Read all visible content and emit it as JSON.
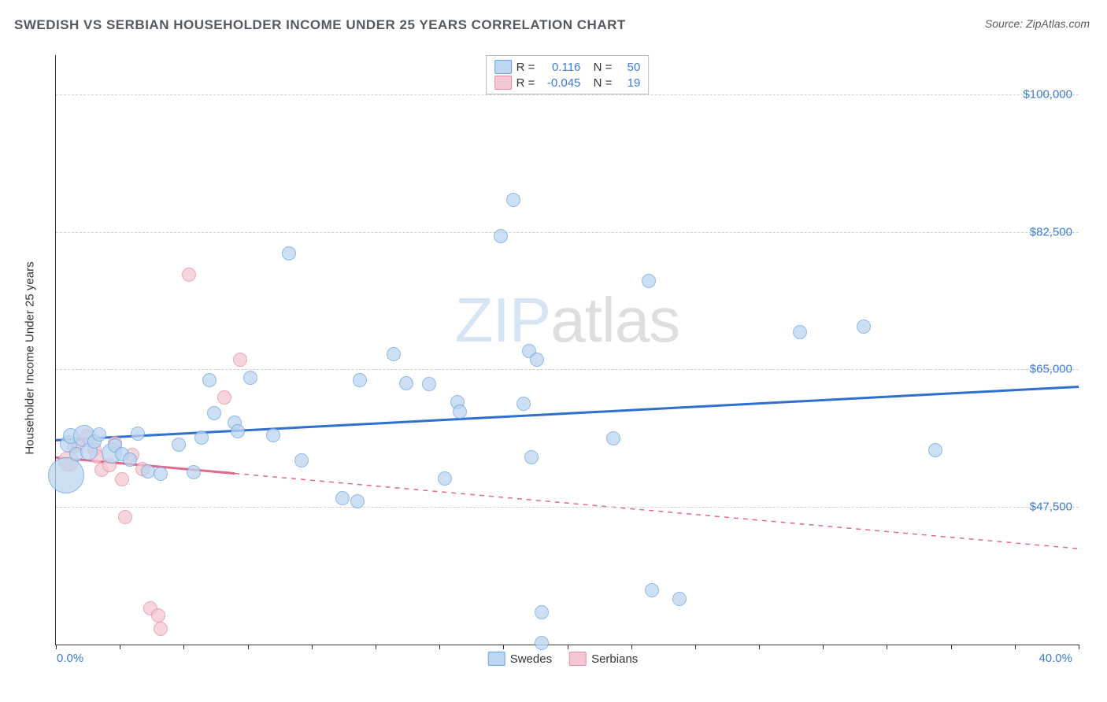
{
  "title": "SWEDISH VS SERBIAN HOUSEHOLDER INCOME UNDER 25 YEARS CORRELATION CHART",
  "source_label": "Source:",
  "source_name": "ZipAtlas.com",
  "watermark_a": "ZIP",
  "watermark_b": "atlas",
  "ylabel": "Householder Income Under 25 years",
  "chart": {
    "type": "scatter",
    "xlim": [
      0,
      40
    ],
    "ylim": [
      30000,
      105000
    ],
    "x_axis_left_label": "0.0%",
    "x_axis_right_label": "40.0%",
    "x_minor_ticks": [
      0,
      2.5,
      5,
      7.5,
      10,
      12.5,
      15,
      17.5,
      20,
      22.5,
      25,
      27.5,
      30,
      32.5,
      35,
      37.5,
      40
    ],
    "y_gridlines": [
      47500,
      65000,
      82500,
      100000
    ],
    "y_tick_labels": [
      "$47,500",
      "$65,000",
      "$82,500",
      "$100,000"
    ],
    "grid_color": "#d0d0d0",
    "background_color": "#ffffff",
    "axis_color": "#333333",
    "tick_label_color": "#3a7bd5"
  },
  "series": {
    "swedes": {
      "label": "Swedes",
      "fill": "#bcd5f0",
      "stroke": "#6aa3e0",
      "trend_color": "#2f6fd0",
      "trend_width": 3,
      "trend_y1": 56000,
      "trend_y2": 62800,
      "R": "0.116",
      "N": "50",
      "points": [
        {
          "x": 0.4,
          "y": 51500,
          "r": 22
        },
        {
          "x": 0.5,
          "y": 55500,
          "r": 10
        },
        {
          "x": 0.6,
          "y": 56500,
          "r": 9
        },
        {
          "x": 0.8,
          "y": 54200,
          "r": 8
        },
        {
          "x": 1.1,
          "y": 56500,
          "r": 13
        },
        {
          "x": 1.3,
          "y": 54500,
          "r": 10
        },
        {
          "x": 1.5,
          "y": 55800,
          "r": 8
        },
        {
          "x": 1.7,
          "y": 56700,
          "r": 8
        },
        {
          "x": 2.2,
          "y": 54300,
          "r": 12
        },
        {
          "x": 2.3,
          "y": 55300,
          "r": 8
        },
        {
          "x": 2.6,
          "y": 54200,
          "r": 8
        },
        {
          "x": 2.9,
          "y": 53500,
          "r": 8
        },
        {
          "x": 3.2,
          "y": 56800,
          "r": 8
        },
        {
          "x": 3.6,
          "y": 52000,
          "r": 8
        },
        {
          "x": 4.1,
          "y": 51700,
          "r": 8
        },
        {
          "x": 4.8,
          "y": 55400,
          "r": 8
        },
        {
          "x": 5.4,
          "y": 51900,
          "r": 8
        },
        {
          "x": 5.7,
          "y": 56300,
          "r": 8
        },
        {
          "x": 6.0,
          "y": 63600,
          "r": 8
        },
        {
          "x": 6.2,
          "y": 59400,
          "r": 8
        },
        {
          "x": 7.0,
          "y": 58200,
          "r": 8
        },
        {
          "x": 7.1,
          "y": 57100,
          "r": 8
        },
        {
          "x": 7.6,
          "y": 63900,
          "r": 8
        },
        {
          "x": 8.5,
          "y": 56600,
          "r": 8
        },
        {
          "x": 9.1,
          "y": 79800,
          "r": 8
        },
        {
          "x": 9.6,
          "y": 53400,
          "r": 8
        },
        {
          "x": 11.2,
          "y": 48600,
          "r": 8
        },
        {
          "x": 11.8,
          "y": 48200,
          "r": 8
        },
        {
          "x": 11.9,
          "y": 63600,
          "r": 8
        },
        {
          "x": 13.2,
          "y": 66900,
          "r": 8
        },
        {
          "x": 13.7,
          "y": 63200,
          "r": 8
        },
        {
          "x": 14.6,
          "y": 63100,
          "r": 8
        },
        {
          "x": 15.2,
          "y": 51100,
          "r": 8
        },
        {
          "x": 15.7,
          "y": 60800,
          "r": 8
        },
        {
          "x": 15.8,
          "y": 59600,
          "r": 8
        },
        {
          "x": 17.4,
          "y": 82000,
          "r": 8
        },
        {
          "x": 17.9,
          "y": 86600,
          "r": 8
        },
        {
          "x": 18.3,
          "y": 60600,
          "r": 8
        },
        {
          "x": 18.5,
          "y": 67300,
          "r": 8
        },
        {
          "x": 18.6,
          "y": 53800,
          "r": 8
        },
        {
          "x": 18.8,
          "y": 66200,
          "r": 8
        },
        {
          "x": 19.0,
          "y": 34100,
          "r": 8
        },
        {
          "x": 19.0,
          "y": 30200,
          "r": 8
        },
        {
          "x": 21.8,
          "y": 56200,
          "r": 8
        },
        {
          "x": 23.2,
          "y": 76300,
          "r": 8
        },
        {
          "x": 23.3,
          "y": 36900,
          "r": 8
        },
        {
          "x": 24.4,
          "y": 35800,
          "r": 8
        },
        {
          "x": 29.1,
          "y": 69800,
          "r": 8
        },
        {
          "x": 31.6,
          "y": 70500,
          "r": 8
        },
        {
          "x": 34.4,
          "y": 54700,
          "r": 8
        }
      ]
    },
    "serbians": {
      "label": "Serbians",
      "fill": "#f5c7d2",
      "stroke": "#e38ca3",
      "trend_color": "#e06a8a",
      "trend_width": 3,
      "trend_dash_solid_end": 7,
      "trend_y1": 53800,
      "trend_y2": 42200,
      "R": "-0.045",
      "N": "19",
      "points": [
        {
          "x": 0.5,
          "y": 53300,
          "r": 12
        },
        {
          "x": 0.7,
          "y": 55200,
          "r": 8
        },
        {
          "x": 0.9,
          "y": 55400,
          "r": 8
        },
        {
          "x": 1.2,
          "y": 56500,
          "r": 8
        },
        {
          "x": 1.5,
          "y": 54800,
          "r": 8
        },
        {
          "x": 1.6,
          "y": 53900,
          "r": 8
        },
        {
          "x": 1.8,
          "y": 52200,
          "r": 8
        },
        {
          "x": 2.1,
          "y": 52800,
          "r": 8
        },
        {
          "x": 2.3,
          "y": 55600,
          "r": 8
        },
        {
          "x": 2.6,
          "y": 51000,
          "r": 8
        },
        {
          "x": 2.7,
          "y": 46200,
          "r": 8
        },
        {
          "x": 3.0,
          "y": 54100,
          "r": 8
        },
        {
          "x": 3.4,
          "y": 52300,
          "r": 8
        },
        {
          "x": 3.7,
          "y": 34600,
          "r": 8
        },
        {
          "x": 4.0,
          "y": 33700,
          "r": 8
        },
        {
          "x": 4.1,
          "y": 32000,
          "r": 8
        },
        {
          "x": 5.2,
          "y": 77100,
          "r": 8
        },
        {
          "x": 6.6,
          "y": 61400,
          "r": 8
        },
        {
          "x": 7.2,
          "y": 66200,
          "r": 8
        }
      ]
    }
  },
  "legend": {
    "r_label": "R =",
    "n_label": "N ="
  }
}
